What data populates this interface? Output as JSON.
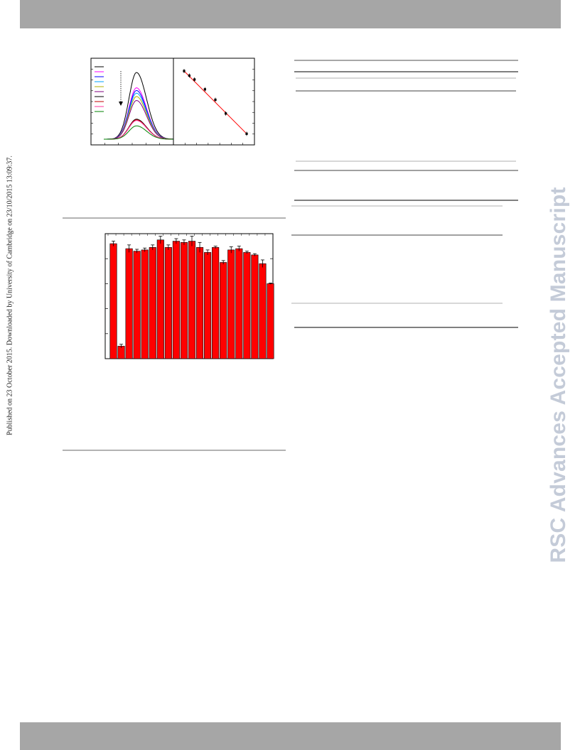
{
  "publication_note": "Published on 23 October 2015. Downloaded by University of Cambridge on 23/10/2015 13:09:37.",
  "watermark": "RSC Advances Accepted Manuscript",
  "colors": {
    "header_bar": "#a6a6a6",
    "bar_fill": "#ff0000",
    "fit_line": "#ff0000",
    "watermark": "#c4cbd8",
    "emission_series": [
      "#000000",
      "#ff00ff",
      "#0000ff",
      "#00a0ff",
      "#b0b000",
      "#800080",
      "#000000",
      "#c00000",
      "#ff3399",
      "#008000"
    ]
  },
  "chart_data": [
    {
      "type": "line",
      "description_visible": "emission spectra, decreasing with arrow",
      "x": [
        0,
        1,
        2,
        3,
        4,
        5,
        6,
        7,
        8,
        9,
        10,
        11,
        12,
        13,
        14,
        15,
        16,
        17,
        18,
        19,
        20
      ],
      "series": [
        {
          "peak": 1.0
        },
        {
          "peak": 0.77
        },
        {
          "peak": 0.73
        },
        {
          "peak": 0.69
        },
        {
          "peak": 0.64
        },
        {
          "peak": 0.58
        },
        {
          "peak": 0.3
        },
        {
          "peak": 0.29
        },
        {
          "peak": 0.28
        },
        {
          "peak": 0.2
        }
      ],
      "legend_entries": 10,
      "arrow": "down"
    },
    {
      "type": "scatter",
      "x": [
        0.0,
        0.5,
        1.0,
        2.0,
        3.0,
        4.0,
        6.0
      ],
      "y": [
        1.0,
        0.93,
        0.87,
        0.72,
        0.56,
        0.35,
        0.04
      ],
      "fit_line": {
        "from": [
          0.0,
          1.0
        ],
        "to": [
          6.0,
          0.04
        ]
      }
    },
    {
      "type": "bar",
      "values": [
        92,
        10,
        88,
        86,
        87,
        89,
        95,
        89,
        94,
        93,
        94,
        89,
        85,
        89,
        77,
        87,
        88,
        85,
        83,
        76,
        60
      ],
      "errors": [
        2,
        1.5,
        3,
        1.5,
        1.5,
        2,
        3,
        2,
        2,
        2,
        4,
        4,
        2,
        1,
        1.5,
        2.5,
        2,
        1,
        1,
        3,
        0.5
      ],
      "ylim": [
        0,
        100
      ]
    }
  ]
}
